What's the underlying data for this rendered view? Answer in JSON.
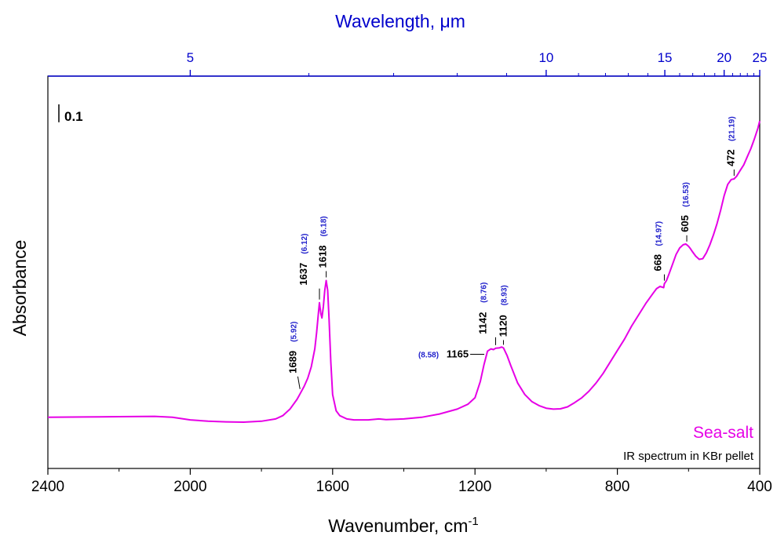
{
  "chart_data": {
    "type": "line",
    "title": "",
    "xlabel": "Wavenumber, cm",
    "xlabel_sup": "-1",
    "ylabel": "Absorbance",
    "top_axis_label_prefix": "Wavelength, ",
    "top_axis_label_unit": "μm",
    "xlim": [
      2400,
      400
    ],
    "ylim": [
      0.0,
      1.0
    ],
    "grid": false,
    "x_ticks": [
      2400,
      2000,
      1600,
      1200,
      800,
      400
    ],
    "x_tick_labels": [
      "2400",
      "2000",
      "1600",
      "1200",
      "800",
      "400"
    ],
    "top_ticks_major": [
      5,
      10,
      15,
      20,
      25
    ],
    "top_tick_labels": [
      "5",
      "10",
      "15",
      "20",
      "25"
    ],
    "top_ticks_minor": [
      6,
      7,
      8,
      9,
      11,
      12,
      13,
      14,
      16,
      17,
      18,
      19,
      21,
      22,
      23,
      24
    ],
    "scale_bar_label": "0.1",
    "scale_bar_value": 0.1,
    "series": [
      {
        "name": "Sea-salt",
        "color": "#e600e6",
        "x": [
          2400,
          2300,
          2200,
          2100,
          2050,
          2000,
          1950,
          1900,
          1850,
          1800,
          1760,
          1740,
          1720,
          1700,
          1690,
          1680,
          1670,
          1660,
          1650,
          1645,
          1640,
          1637,
          1633,
          1630,
          1626,
          1622,
          1618,
          1614,
          1610,
          1605,
          1600,
          1590,
          1580,
          1560,
          1540,
          1500,
          1470,
          1450,
          1400,
          1350,
          1300,
          1250,
          1220,
          1200,
          1185,
          1175,
          1165,
          1155,
          1148,
          1142,
          1132,
          1125,
          1120,
          1110,
          1100,
          1080,
          1060,
          1040,
          1020,
          1000,
          980,
          960,
          940,
          920,
          900,
          880,
          860,
          840,
          820,
          800,
          780,
          760,
          740,
          720,
          700,
          690,
          680,
          675,
          670,
          668,
          662,
          655,
          645,
          635,
          625,
          615,
          608,
          605,
          600,
          595,
          590,
          580,
          570,
          560,
          550,
          540,
          530,
          520,
          510,
          500,
          490,
          480,
          472,
          465,
          455,
          445,
          435,
          425,
          415,
          405,
          400
        ],
        "y": [
          0.08,
          0.081,
          0.082,
          0.083,
          0.08,
          0.072,
          0.068,
          0.066,
          0.065,
          0.068,
          0.075,
          0.085,
          0.105,
          0.135,
          0.155,
          0.175,
          0.2,
          0.235,
          0.29,
          0.34,
          0.4,
          0.432,
          0.398,
          0.385,
          0.42,
          0.47,
          0.5,
          0.47,
          0.38,
          0.25,
          0.15,
          0.1,
          0.085,
          0.075,
          0.072,
          0.072,
          0.075,
          0.073,
          0.075,
          0.08,
          0.09,
          0.105,
          0.12,
          0.14,
          0.19,
          0.24,
          0.283,
          0.29,
          0.288,
          0.292,
          0.293,
          0.296,
          0.293,
          0.27,
          0.24,
          0.185,
          0.15,
          0.128,
          0.116,
          0.108,
          0.105,
          0.106,
          0.112,
          0.125,
          0.14,
          0.16,
          0.185,
          0.215,
          0.25,
          0.285,
          0.32,
          0.36,
          0.395,
          0.43,
          0.46,
          0.475,
          0.482,
          0.48,
          0.478,
          0.49,
          0.5,
          0.52,
          0.55,
          0.58,
          0.6,
          0.61,
          0.612,
          0.61,
          0.605,
          0.598,
          0.59,
          0.575,
          0.565,
          0.567,
          0.585,
          0.61,
          0.64,
          0.675,
          0.715,
          0.76,
          0.795,
          0.81,
          0.812,
          0.82,
          0.838,
          0.855,
          0.88,
          0.905,
          0.935,
          0.968,
          0.99
        ]
      }
    ],
    "annotations": [
      {
        "label": "1689",
        "sub": "(5.92)",
        "x": 1689
      },
      {
        "label": "1637",
        "sub": "(6.12)",
        "x": 1637
      },
      {
        "label": "1618",
        "sub": "(6.18)",
        "x": 1618
      },
      {
        "label": "1165",
        "sub": "(8.58)",
        "x": 1165
      },
      {
        "label": "1142",
        "sub": "(8.76)",
        "x": 1142
      },
      {
        "label": "1120",
        "sub": "(8.93)",
        "x": 1120
      },
      {
        "label": "668",
        "sub": "(14.97)",
        "x": 668
      },
      {
        "label": "605",
        "sub": "(16.53)",
        "x": 605
      },
      {
        "label": "472",
        "sub": "(21.19)",
        "x": 472
      }
    ],
    "legend_text": "Sea-salt",
    "note_text": "IR spectrum in KBr pellet"
  }
}
